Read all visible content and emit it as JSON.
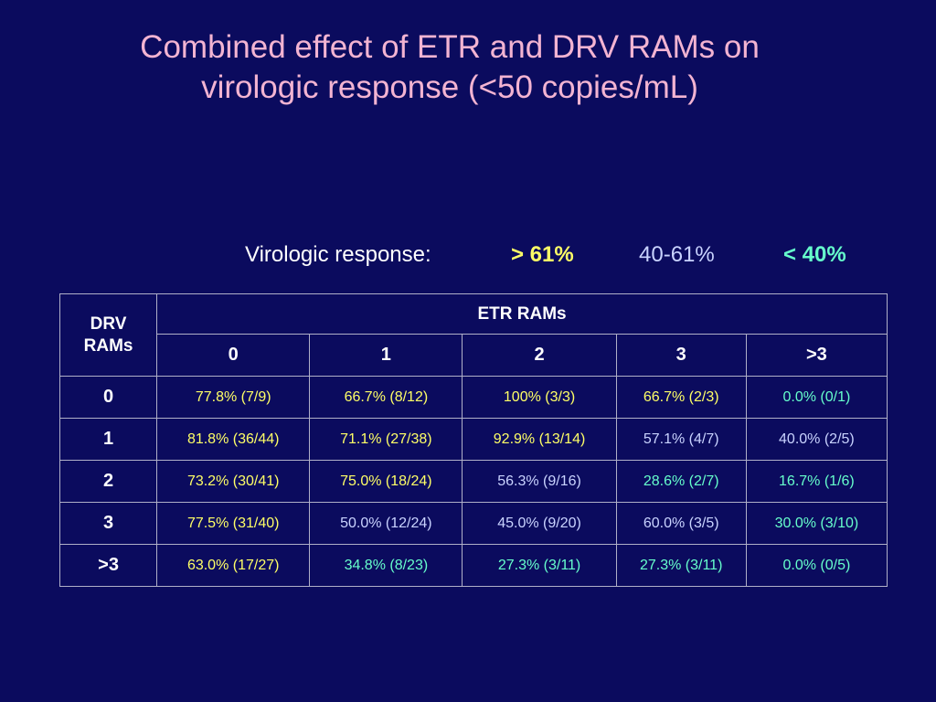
{
  "title": {
    "line1": "Combined effect of ETR and DRV RAMs on",
    "line2": "virologic response (<50 copies/mL)"
  },
  "legend": {
    "label": "Virologic response:",
    "high": "> 61%",
    "mid": "40-61%",
    "low": "< 40%"
  },
  "colors": {
    "background": "#0b0b5e",
    "title": "#f3b4d2",
    "high": "#ffff66",
    "mid": "#c9d3ff",
    "low": "#66ffcc"
  },
  "table": {
    "corner_line1": "DRV",
    "corner_line2": "RAMs",
    "group_header": "ETR RAMs",
    "columns": [
      "0",
      "1",
      "2",
      "3",
      ">3"
    ],
    "rows": [
      {
        "label": "0",
        "cells": [
          {
            "text": "77.8% (7/9)",
            "level": "high"
          },
          {
            "text": "66.7% (8/12)",
            "level": "high"
          },
          {
            "text": "100% (3/3)",
            "level": "high"
          },
          {
            "text": "66.7% (2/3)",
            "level": "high"
          },
          {
            "text": "0.0% (0/1)",
            "level": "low"
          }
        ]
      },
      {
        "label": "1",
        "cells": [
          {
            "text": "81.8% (36/44)",
            "level": "high"
          },
          {
            "text": "71.1% (27/38)",
            "level": "high"
          },
          {
            "text": "92.9% (13/14)",
            "level": "high"
          },
          {
            "text": "57.1% (4/7)",
            "level": "mid"
          },
          {
            "text": "40.0% (2/5)",
            "level": "mid"
          }
        ]
      },
      {
        "label": "2",
        "cells": [
          {
            "text": "73.2% (30/41)",
            "level": "high"
          },
          {
            "text": "75.0% (18/24)",
            "level": "high"
          },
          {
            "text": "56.3% (9/16)",
            "level": "mid"
          },
          {
            "text": "28.6% (2/7)",
            "level": "low"
          },
          {
            "text": "16.7% (1/6)",
            "level": "low"
          }
        ]
      },
      {
        "label": "3",
        "cells": [
          {
            "text": "77.5% (31/40)",
            "level": "high"
          },
          {
            "text": "50.0% (12/24)",
            "level": "mid"
          },
          {
            "text": "45.0% (9/20)",
            "level": "mid"
          },
          {
            "text": "60.0% (3/5)",
            "level": "mid"
          },
          {
            "text": "30.0% (3/10)",
            "level": "low"
          }
        ]
      },
      {
        "label": ">3",
        "cells": [
          {
            "text": "63.0% (17/27)",
            "level": "high"
          },
          {
            "text": "34.8% (8/23)",
            "level": "low"
          },
          {
            "text": "27.3% (3/11)",
            "level": "low"
          },
          {
            "text": "27.3% (3/11)",
            "level": "low"
          },
          {
            "text": "0.0% (0/5)",
            "level": "low"
          }
        ]
      }
    ]
  }
}
